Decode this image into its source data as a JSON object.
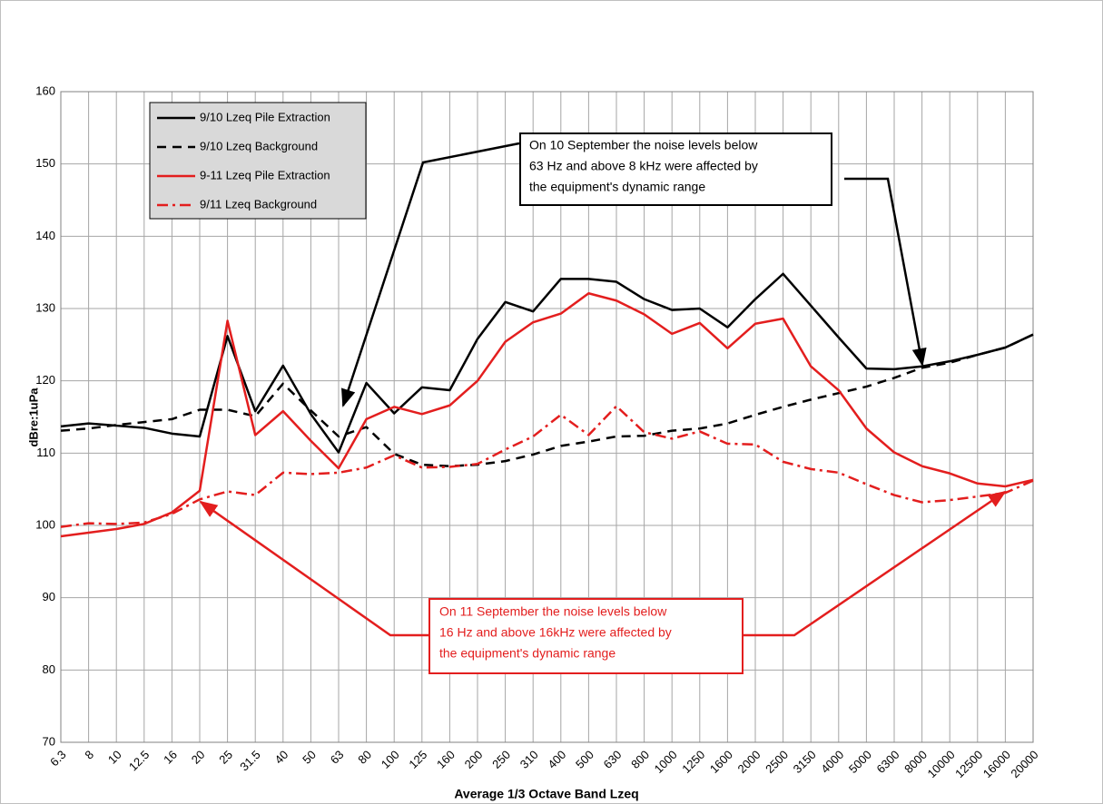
{
  "chart_data": {
    "type": "line",
    "x_label": "Average 1/3 Octave Band Lzeq",
    "y_label": "dBre:1uPa",
    "categories": [
      "6.3",
      "8",
      "10",
      "12.5",
      "16",
      "20",
      "25",
      "31.5",
      "40",
      "50",
      "63",
      "80",
      "100",
      "125",
      "160",
      "200",
      "250",
      "310",
      "400",
      "500",
      "630",
      "800",
      "1000",
      "1250",
      "1600",
      "2000",
      "2500",
      "3150",
      "4000",
      "5000",
      "6300",
      "8000",
      "10000",
      "12500",
      "16000",
      "20000"
    ],
    "ylim": [
      70,
      160
    ],
    "yticks": [
      70,
      80,
      90,
      100,
      110,
      120,
      130,
      140,
      150,
      160
    ],
    "grid": true,
    "legend": "upper left",
    "series": [
      {
        "name": "9/10 Lzeq Pile Extraction",
        "color": "#000000",
        "linestyle": "solid",
        "values": [
          113.7,
          114.1,
          113.8,
          113.5,
          112.7,
          112.3,
          126.2,
          115.8,
          122.1,
          115.4,
          110.1,
          119.7,
          115.5,
          119.1,
          118.7,
          125.8,
          130.9,
          129.6,
          134.1,
          134.1,
          133.7,
          131.3,
          129.8,
          130.0,
          127.4,
          131.3,
          134.8,
          130.4,
          126.0,
          121.7,
          121.6,
          122.0,
          122.7,
          123.6,
          124.6,
          126.4
        ]
      },
      {
        "name": "9/10 Lzeq Background",
        "color": "#000000",
        "linestyle": "dashed",
        "values": [
          113.1,
          113.4,
          113.9,
          114.3,
          114.7,
          116.0,
          116.0,
          115.1,
          119.6,
          115.9,
          112.3,
          113.6,
          109.9,
          108.4,
          108.2,
          108.4,
          108.9,
          109.8,
          111.0,
          111.6,
          112.3,
          112.4,
          113.1,
          113.4,
          114.1,
          115.3,
          116.4,
          117.4,
          118.3,
          119.2,
          120.4,
          121.8,
          122.5,
          123.6,
          124.6,
          126.4
        ]
      },
      {
        "name": "9-11 Lzeq Pile Extraction",
        "color": "#e31e1e",
        "linestyle": "solid",
        "values": [
          98.5,
          99.0,
          99.5,
          100.2,
          101.8,
          104.8,
          128.3,
          112.5,
          115.8,
          111.7,
          107.9,
          114.7,
          116.4,
          115.4,
          116.6,
          120.0,
          125.4,
          128.1,
          129.3,
          132.1,
          131.1,
          129.2,
          126.5,
          128.0,
          124.5,
          127.9,
          128.6,
          122.0,
          118.7,
          113.4,
          110.1,
          108.2,
          107.2,
          105.8,
          105.4,
          106.3
        ]
      },
      {
        "name": "9/11 Lzeq Background",
        "color": "#e31e1e",
        "linestyle": "dashdot",
        "values": [
          99.8,
          100.3,
          100.2,
          100.4,
          101.6,
          103.6,
          104.7,
          104.2,
          107.3,
          107.1,
          107.3,
          108.0,
          109.7,
          108.0,
          108.1,
          108.5,
          110.5,
          112.3,
          115.3,
          112.5,
          116.5,
          112.9,
          112.0,
          113.0,
          111.3,
          111.2,
          108.8,
          107.8,
          107.3,
          105.7,
          104.2,
          103.2,
          103.5,
          104.0,
          104.5,
          106.2
        ]
      }
    ],
    "annotations": [
      {
        "color": "#000000",
        "lines": [
          "On 10 September the noise levels below",
          "63 Hz and above 8 kHz  were affected by",
          "the equipment's dynamic range"
        ]
      },
      {
        "color": "#e31e1e",
        "lines": [
          "On 11 September the noise levels below",
          "16 Hz and above 16kHz were affected by",
          "the equipment's dynamic range"
        ]
      }
    ]
  }
}
